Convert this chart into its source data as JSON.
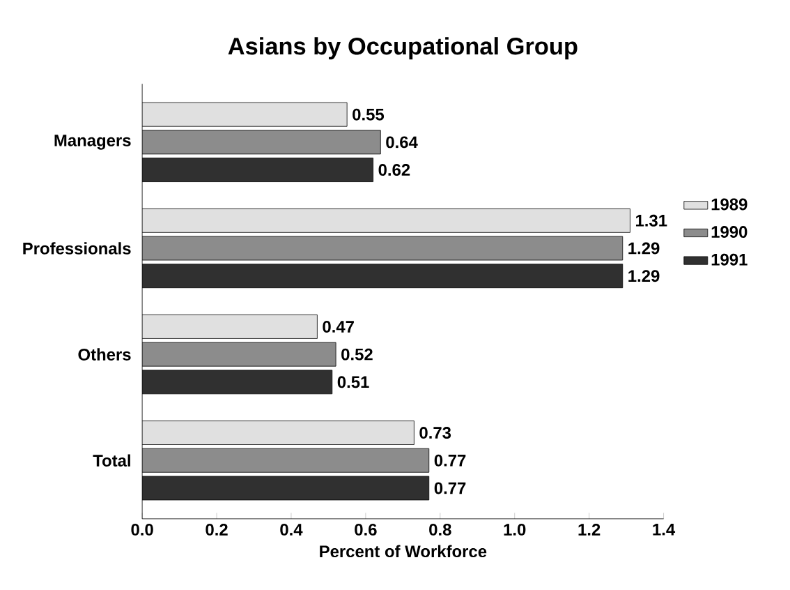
{
  "chart_data": {
    "type": "bar",
    "orientation": "horizontal",
    "title": "Asians by Occupational Group",
    "xlabel": "Percent of Workforce",
    "categories": [
      "Managers",
      "Professionals",
      "Others",
      "Total"
    ],
    "series": [
      {
        "name": "1989",
        "color": "#e0e0e0",
        "values": [
          0.55,
          1.31,
          0.47,
          0.73
        ],
        "value_labels": [
          "0.55",
          "1.31",
          "0.47",
          "0.73"
        ]
      },
      {
        "name": "1990",
        "color": "#8c8c8c",
        "values": [
          0.64,
          1.29,
          0.52,
          0.77
        ],
        "value_labels": [
          "0.64",
          "1.29",
          "0.52",
          "0.77"
        ]
      },
      {
        "name": "1991",
        "color": "#303030",
        "values": [
          0.62,
          1.29,
          0.51,
          0.77
        ],
        "value_labels": [
          "0.62",
          "1.29",
          "0.51",
          "0.77"
        ]
      }
    ],
    "xlim": [
      0,
      1.4
    ],
    "xticks": [
      {
        "value": 0,
        "label": "0.0"
      },
      0.2,
      0.4,
      0.6,
      0.8,
      {
        "value": 1,
        "label": "1.0"
      },
      1.2,
      1.4
    ],
    "grid": false,
    "legend": "right"
  }
}
